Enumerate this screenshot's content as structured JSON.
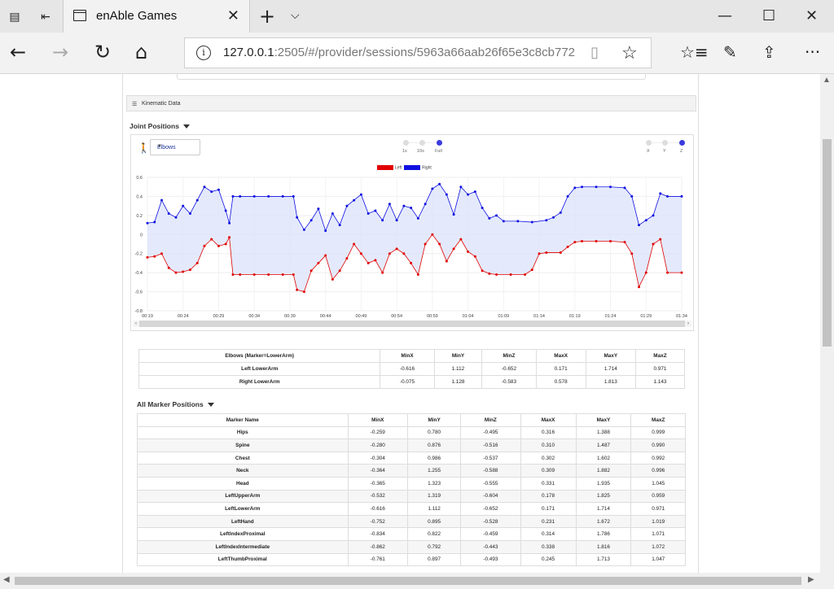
{
  "browser": {
    "tab_title": "enAble Games",
    "url_host": "127.0.0.1",
    "url_rest": ":2505/#/provider/sessions/5963a66aab26f65e3c8cb772"
  },
  "panel": {
    "header": "Kinematic Data",
    "joint_title": "Joint Positions",
    "selector_value": "Elbows",
    "range_options": [
      "1s",
      "10s",
      "Full"
    ],
    "axis_options": [
      "X",
      "Y",
      "Z"
    ],
    "all_markers_title": "All Marker Positions"
  },
  "chart_data": {
    "type": "line",
    "legend": [
      "Left",
      "Right"
    ],
    "colors": {
      "Left": "#e00000",
      "Right": "#1010e0",
      "fill": "#dbe3fb"
    },
    "ylim": [
      -0.8,
      0.6
    ],
    "yticks": [
      "0.6",
      "0.4",
      "0.2",
      "0",
      "-0.2",
      "-0.4",
      "-0.6",
      "-0.8"
    ],
    "xticks": [
      "00:19",
      "00:24",
      "00:29",
      "00:34",
      "00:39",
      "00:44",
      "00:49",
      "00:54",
      "00:59",
      "01:04",
      "01:09",
      "01:14",
      "01:19",
      "01:24",
      "01:29",
      "01:34"
    ],
    "xlim": [
      19,
      94
    ],
    "series": [
      {
        "name": "Right",
        "points": [
          [
            19,
            0.12
          ],
          [
            20,
            0.13
          ],
          [
            21,
            0.36
          ],
          [
            22,
            0.22
          ],
          [
            23,
            0.18
          ],
          [
            24,
            0.3
          ],
          [
            25,
            0.22
          ],
          [
            26,
            0.36
          ],
          [
            27,
            0.5
          ],
          [
            28,
            0.45
          ],
          [
            29,
            0.47
          ],
          [
            30,
            0.25
          ],
          [
            30.5,
            0.12
          ],
          [
            31,
            0.4
          ],
          [
            32,
            0.4
          ],
          [
            34,
            0.4
          ],
          [
            36,
            0.4
          ],
          [
            38,
            0.4
          ],
          [
            39.5,
            0.4
          ],
          [
            40,
            0.18
          ],
          [
            41,
            0.05
          ],
          [
            42,
            0.15
          ],
          [
            43,
            0.27
          ],
          [
            44,
            0.04
          ],
          [
            45,
            0.22
          ],
          [
            46,
            0.1
          ],
          [
            47,
            0.3
          ],
          [
            48,
            0.36
          ],
          [
            49,
            0.42
          ],
          [
            50,
            0.22
          ],
          [
            51,
            0.25
          ],
          [
            52,
            0.15
          ],
          [
            53,
            0.32
          ],
          [
            54,
            0.15
          ],
          [
            55,
            0.3
          ],
          [
            56,
            0.28
          ],
          [
            57,
            0.17
          ],
          [
            58,
            0.32
          ],
          [
            59,
            0.48
          ],
          [
            60,
            0.53
          ],
          [
            61,
            0.42
          ],
          [
            62,
            0.21
          ],
          [
            63,
            0.5
          ],
          [
            64,
            0.42
          ],
          [
            65,
            0.45
          ],
          [
            66,
            0.28
          ],
          [
            67,
            0.17
          ],
          [
            68,
            0.2
          ],
          [
            69,
            0.14
          ],
          [
            71,
            0.14
          ],
          [
            73,
            0.13
          ],
          [
            75,
            0.15
          ],
          [
            76,
            0.18
          ],
          [
            77,
            0.23
          ],
          [
            78,
            0.4
          ],
          [
            79,
            0.49
          ],
          [
            80,
            0.5
          ],
          [
            82,
            0.5
          ],
          [
            84,
            0.5
          ],
          [
            86,
            0.49
          ],
          [
            87,
            0.4
          ],
          [
            88,
            0.1
          ],
          [
            89,
            0.15
          ],
          [
            90,
            0.2
          ],
          [
            91,
            0.43
          ],
          [
            92,
            0.4
          ],
          [
            94,
            0.4
          ]
        ]
      },
      {
        "name": "Left",
        "points": [
          [
            19,
            -0.24
          ],
          [
            20,
            -0.23
          ],
          [
            21,
            -0.2
          ],
          [
            22,
            -0.35
          ],
          [
            23,
            -0.4
          ],
          [
            24,
            -0.39
          ],
          [
            25,
            -0.37
          ],
          [
            26,
            -0.3
          ],
          [
            27,
            -0.12
          ],
          [
            28,
            -0.05
          ],
          [
            29,
            -0.12
          ],
          [
            30,
            -0.1
          ],
          [
            30.5,
            -0.03
          ],
          [
            31,
            -0.42
          ],
          [
            32,
            -0.42
          ],
          [
            34,
            -0.42
          ],
          [
            36,
            -0.42
          ],
          [
            38,
            -0.42
          ],
          [
            39.5,
            -0.42
          ],
          [
            40,
            -0.58
          ],
          [
            41,
            -0.6
          ],
          [
            42,
            -0.38
          ],
          [
            43,
            -0.3
          ],
          [
            44,
            -0.22
          ],
          [
            45,
            -0.47
          ],
          [
            46,
            -0.38
          ],
          [
            47,
            -0.25
          ],
          [
            48,
            -0.1
          ],
          [
            49,
            -0.2
          ],
          [
            50,
            -0.3
          ],
          [
            51,
            -0.27
          ],
          [
            52,
            -0.4
          ],
          [
            53,
            -0.2
          ],
          [
            54,
            -0.15
          ],
          [
            55,
            -0.2
          ],
          [
            56,
            -0.3
          ],
          [
            57,
            -0.42
          ],
          [
            58,
            -0.1
          ],
          [
            59,
            0.0
          ],
          [
            60,
            -0.1
          ],
          [
            61,
            -0.28
          ],
          [
            62,
            -0.15
          ],
          [
            63,
            -0.05
          ],
          [
            64,
            -0.18
          ],
          [
            65,
            -0.23
          ],
          [
            66,
            -0.38
          ],
          [
            67,
            -0.41
          ],
          [
            68,
            -0.42
          ],
          [
            70,
            -0.42
          ],
          [
            72,
            -0.42
          ],
          [
            73,
            -0.37
          ],
          [
            74,
            -0.2
          ],
          [
            75,
            -0.19
          ],
          [
            77,
            -0.19
          ],
          [
            78,
            -0.13
          ],
          [
            79,
            -0.08
          ],
          [
            80,
            -0.07
          ],
          [
            82,
            -0.07
          ],
          [
            84,
            -0.07
          ],
          [
            86,
            -0.08
          ],
          [
            87,
            -0.2
          ],
          [
            88,
            -0.55
          ],
          [
            89,
            -0.4
          ],
          [
            90,
            -0.1
          ],
          [
            91,
            -0.05
          ],
          [
            92,
            -0.4
          ],
          [
            94,
            -0.4
          ]
        ]
      }
    ]
  },
  "elbow_table": {
    "headers": [
      "Elbows (Marker=LowerArm)",
      "MinX",
      "MinY",
      "MinZ",
      "MaxX",
      "MaxY",
      "MaxZ"
    ],
    "rows": [
      [
        "Left LowerArm",
        "-0.616",
        "1.112",
        "-0.652",
        "0.171",
        "1.714",
        "0.971"
      ],
      [
        "Right LowerArm",
        "-0.075",
        "1.128",
        "-0.583",
        "0.578",
        "1.813",
        "1.143"
      ]
    ]
  },
  "marker_table": {
    "headers": [
      "Marker Name",
      "MinX",
      "MinY",
      "MinZ",
      "MaxX",
      "MaxY",
      "MaxZ"
    ],
    "rows": [
      [
        "Hips",
        "-0.259",
        "0.780",
        "-0.495",
        "0.316",
        "1.388",
        "0.999"
      ],
      [
        "Spine",
        "-0.280",
        "0.876",
        "-0.516",
        "0.310",
        "1.487",
        "0.990"
      ],
      [
        "Chest",
        "-0.304",
        "0.986",
        "-0.537",
        "0.302",
        "1.602",
        "0.992"
      ],
      [
        "Neck",
        "-0.364",
        "1.255",
        "-0.588",
        "0.309",
        "1.882",
        "0.996"
      ],
      [
        "Head",
        "-0.365",
        "1.323",
        "-0.555",
        "0.331",
        "1.935",
        "1.045"
      ],
      [
        "LeftUpperArm",
        "-0.532",
        "1.319",
        "-0.604",
        "0.178",
        "1.825",
        "0.959"
      ],
      [
        "LeftLowerArm",
        "-0.616",
        "1.112",
        "-0.652",
        "0.171",
        "1.714",
        "0.971"
      ],
      [
        "LeftHand",
        "-0.752",
        "0.895",
        "-0.528",
        "0.231",
        "1.672",
        "1.019"
      ],
      [
        "LeftIndexProximal",
        "-0.834",
        "0.822",
        "-0.459",
        "0.314",
        "1.786",
        "1.071"
      ],
      [
        "LeftIndexIntermediate",
        "-0.862",
        "0.792",
        "-0.443",
        "0.338",
        "1.816",
        "1.072"
      ],
      [
        "LeftThumbProximal",
        "-0.761",
        "0.897",
        "-0.493",
        "0.245",
        "1.713",
        "1.047"
      ]
    ]
  }
}
